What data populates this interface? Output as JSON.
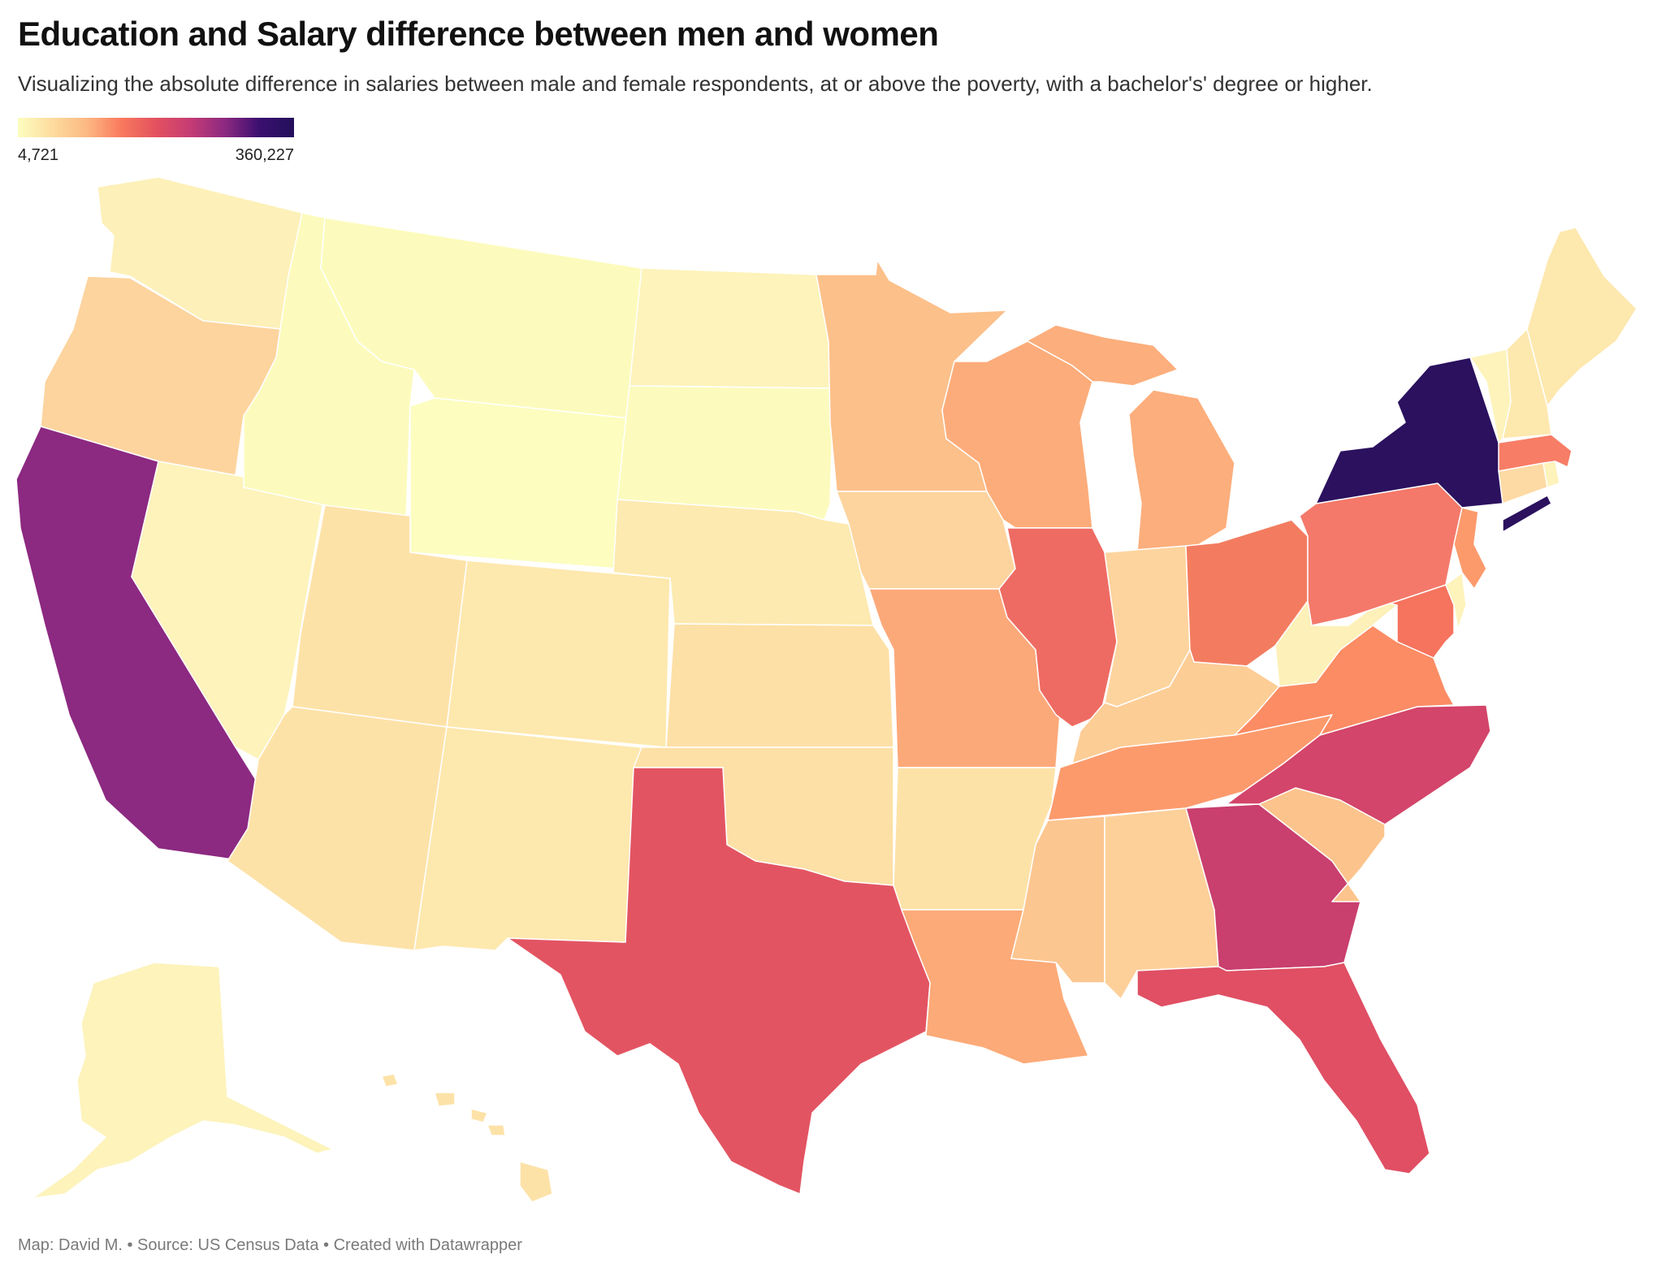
{
  "title": "Education and Salary difference between men and women",
  "subtitle": "Visualizing the absolute difference in salaries between male and female respondents, at or above the poverty, with a bachelor's' degree or higher.",
  "legend": {
    "min_label": "4,721",
    "max_label": "360,227",
    "colors": [
      "#fcfdbf",
      "#fddc9e",
      "#fcb883",
      "#f9795d",
      "#e3515f",
      "#c53c74",
      "#8c2981",
      "#3b0f70",
      "#23105a"
    ]
  },
  "states": [
    {
      "id": "WA",
      "name": "Washington",
      "color": "#fdf0b8"
    },
    {
      "id": "OR",
      "name": "Oregon",
      "color": "#fdd49e"
    },
    {
      "id": "CA",
      "name": "California",
      "color": "#8c2981"
    },
    {
      "id": "NV",
      "name": "Nevada",
      "color": "#fdf3bb"
    },
    {
      "id": "ID",
      "name": "Idaho",
      "color": "#fcfbbd"
    },
    {
      "id": "MT",
      "name": "Montana",
      "color": "#fcfbbd"
    },
    {
      "id": "WY",
      "name": "Wyoming",
      "color": "#fcfdbf"
    },
    {
      "id": "UT",
      "name": "Utah",
      "color": "#fde2a8"
    },
    {
      "id": "AZ",
      "name": "Arizona",
      "color": "#fde2a8"
    },
    {
      "id": "CO",
      "name": "Colorado",
      "color": "#fde8ae"
    },
    {
      "id": "NM",
      "name": "New Mexico",
      "color": "#fde8ae"
    },
    {
      "id": "ND",
      "name": "North Dakota",
      "color": "#fdf3bb"
    },
    {
      "id": "SD",
      "name": "South Dakota",
      "color": "#fcfbbd"
    },
    {
      "id": "NE",
      "name": "Nebraska",
      "color": "#fdeab0"
    },
    {
      "id": "KS",
      "name": "Kansas",
      "color": "#fde0a6"
    },
    {
      "id": "OK",
      "name": "Oklahoma",
      "color": "#fde0a6"
    },
    {
      "id": "TX",
      "name": "Texas",
      "color": "#e35462"
    },
    {
      "id": "MN",
      "name": "Minnesota",
      "color": "#fcc08a"
    },
    {
      "id": "IA",
      "name": "Iowa",
      "color": "#fdd49e"
    },
    {
      "id": "MO",
      "name": "Missouri",
      "color": "#fca97a"
    },
    {
      "id": "AR",
      "name": "Arkansas",
      "color": "#fde2a8"
    },
    {
      "id": "LA",
      "name": "Louisiana",
      "color": "#fcaa78"
    },
    {
      "id": "WI",
      "name": "Wisconsin",
      "color": "#fcac7a"
    },
    {
      "id": "IL",
      "name": "Illinois",
      "color": "#ee6b63"
    },
    {
      "id": "MI",
      "name": "Michigan",
      "color": "#fcae7c"
    },
    {
      "id": "IN",
      "name": "Indiana",
      "color": "#fdd49e"
    },
    {
      "id": "OH",
      "name": "Ohio",
      "color": "#f37c60"
    },
    {
      "id": "KY",
      "name": "Kentucky",
      "color": "#fdcd96"
    },
    {
      "id": "TN",
      "name": "Tennessee",
      "color": "#fc9a6c"
    },
    {
      "id": "MS",
      "name": "Mississippi",
      "color": "#fcc690"
    },
    {
      "id": "AL",
      "name": "Alabama",
      "color": "#fdd09a"
    },
    {
      "id": "GA",
      "name": "Georgia",
      "color": "#c93f6e"
    },
    {
      "id": "FL",
      "name": "Florida",
      "color": "#e04f64"
    },
    {
      "id": "SC",
      "name": "South Carolina",
      "color": "#fcc48c"
    },
    {
      "id": "NC",
      "name": "North Carolina",
      "color": "#d3456a"
    },
    {
      "id": "VA",
      "name": "Virginia",
      "color": "#fb8c64"
    },
    {
      "id": "WV",
      "name": "West Virginia",
      "color": "#fdf0b8"
    },
    {
      "id": "MD",
      "name": "Maryland",
      "color": "#f6735e"
    },
    {
      "id": "DE",
      "name": "Delaware",
      "color": "#fdf3bb"
    },
    {
      "id": "PA",
      "name": "Pennsylvania",
      "color": "#f4796a"
    },
    {
      "id": "NJ",
      "name": "New Jersey",
      "color": "#fc9a6c"
    },
    {
      "id": "NY",
      "name": "New York",
      "color": "#2b115e"
    },
    {
      "id": "CT",
      "name": "Connecticut",
      "color": "#fddaa4"
    },
    {
      "id": "RI",
      "name": "Rhode Island",
      "color": "#fdf3bb"
    },
    {
      "id": "MA",
      "name": "Massachusetts",
      "color": "#f77d66"
    },
    {
      "id": "VT",
      "name": "Vermont",
      "color": "#fdf3bb"
    },
    {
      "id": "NH",
      "name": "New Hampshire",
      "color": "#fde8ae"
    },
    {
      "id": "ME",
      "name": "Maine",
      "color": "#fde8ae"
    },
    {
      "id": "AK",
      "name": "Alaska",
      "color": "#fdf3bb"
    },
    {
      "id": "HI",
      "name": "Hawaii",
      "color": "#fde2a8"
    }
  ],
  "footer": "Map: David M. • Source: US Census Data • Created with Datawrapper"
}
